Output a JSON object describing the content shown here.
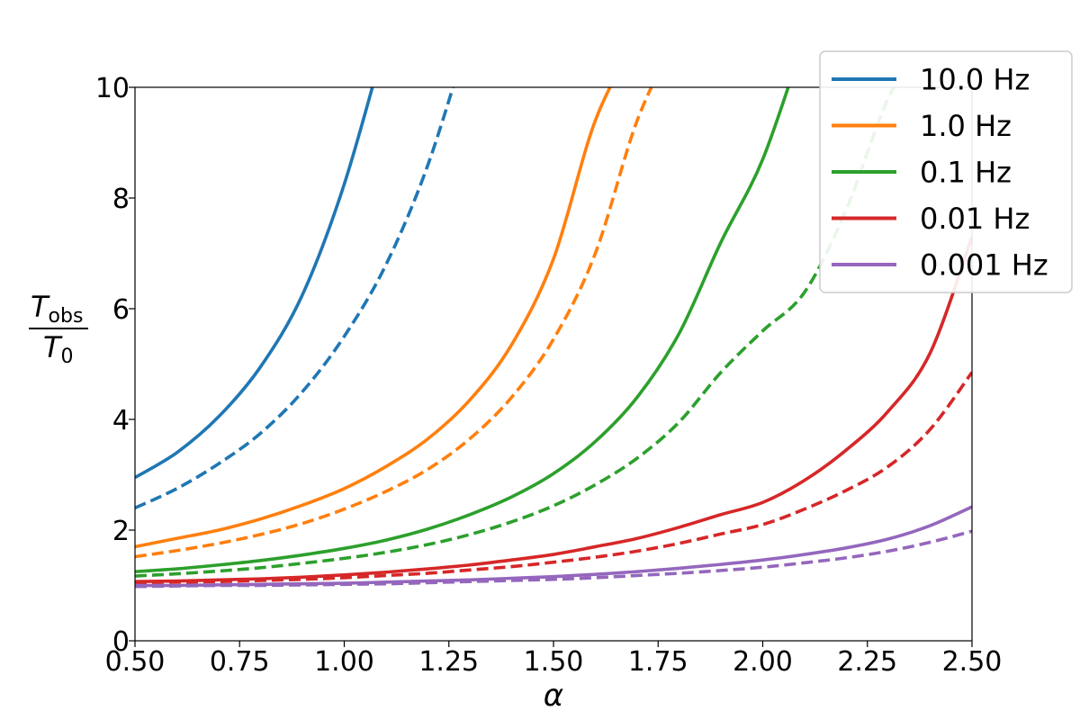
{
  "chart_data": {
    "type": "line",
    "xlabel": "α",
    "ylabel": {
      "numerator_base": "T",
      "numerator_sub": "obs",
      "denominator_base": "T",
      "denominator_sub": "0"
    },
    "xlim": [
      0.5,
      2.5
    ],
    "ylim": [
      0,
      10
    ],
    "xticks": [
      0.5,
      0.75,
      1.0,
      1.25,
      1.5,
      1.75,
      2.0,
      2.25,
      2.5
    ],
    "xtick_labels": [
      "0.50",
      "0.75",
      "1.00",
      "1.25",
      "1.50",
      "1.75",
      "2.00",
      "2.25",
      "2.50"
    ],
    "yticks": [
      0,
      2,
      4,
      6,
      8,
      10
    ],
    "ytick_labels": [
      "0",
      "2",
      "4",
      "6",
      "8",
      "10"
    ],
    "grid": false,
    "legend_position": "top-right",
    "x": [
      0.5,
      0.6,
      0.7,
      0.8,
      0.9,
      1.0,
      1.1,
      1.2,
      1.3,
      1.4,
      1.5,
      1.6,
      1.7,
      1.8,
      1.9,
      2.0,
      2.1,
      2.2,
      2.3,
      2.4,
      2.5
    ],
    "series": [
      {
        "name": "10.0 Hz",
        "color": "#1f77b4",
        "style": "solid",
        "values": [
          2.95,
          3.4,
          4.05,
          4.95,
          6.25,
          8.25,
          10.9,
          null,
          null,
          null,
          null,
          null,
          null,
          null,
          null,
          null,
          null,
          null,
          null,
          null,
          null
        ]
      },
      {
        "name": "",
        "color": "#1f77b4",
        "style": "dashed",
        "values": [
          2.4,
          2.75,
          3.2,
          3.75,
          4.5,
          5.5,
          6.8,
          8.6,
          11.0,
          null,
          null,
          null,
          null,
          null,
          null,
          null,
          null,
          null,
          null,
          null,
          null
        ]
      },
      {
        "name": "1.0 Hz",
        "color": "#ff7f0e",
        "style": "solid",
        "values": [
          1.7,
          1.85,
          2.0,
          2.2,
          2.45,
          2.75,
          3.15,
          3.65,
          4.35,
          5.35,
          6.9,
          9.4,
          10.9,
          null,
          null,
          null,
          null,
          null,
          null,
          null,
          null
        ]
      },
      {
        "name": "",
        "color": "#ff7f0e",
        "style": "dashed",
        "values": [
          1.52,
          1.63,
          1.76,
          1.92,
          2.12,
          2.38,
          2.7,
          3.1,
          3.65,
          4.4,
          5.45,
          7.0,
          9.4,
          11.0,
          null,
          null,
          null,
          null,
          null,
          null,
          null
        ]
      },
      {
        "name": "0.1 Hz",
        "color": "#2ca02c",
        "style": "solid",
        "values": [
          1.25,
          1.3,
          1.37,
          1.45,
          1.55,
          1.67,
          1.82,
          2.02,
          2.28,
          2.6,
          3.02,
          3.6,
          4.4,
          5.55,
          7.2,
          8.7,
          10.9,
          null,
          null,
          null,
          null
        ]
      },
      {
        "name": "",
        "color": "#2ca02c",
        "style": "dashed",
        "values": [
          1.17,
          1.21,
          1.26,
          1.32,
          1.4,
          1.49,
          1.6,
          1.74,
          1.92,
          2.15,
          2.44,
          2.82,
          3.3,
          3.95,
          4.85,
          5.6,
          6.3,
          7.8,
          9.8,
          11.0,
          null
        ]
      },
      {
        "name": "0.01 Hz",
        "color": "#d62728",
        "style": "solid",
        "values": [
          1.07,
          1.08,
          1.1,
          1.12,
          1.15,
          1.19,
          1.24,
          1.3,
          1.37,
          1.46,
          1.56,
          1.7,
          1.85,
          2.05,
          2.28,
          2.5,
          2.9,
          3.45,
          4.15,
          5.2,
          7.3
        ]
      },
      {
        "name": "",
        "color": "#d62728",
        "style": "dashed",
        "values": [
          1.05,
          1.06,
          1.07,
          1.09,
          1.11,
          1.14,
          1.18,
          1.22,
          1.28,
          1.34,
          1.42,
          1.51,
          1.62,
          1.76,
          1.93,
          2.1,
          2.38,
          2.72,
          3.15,
          3.82,
          4.85
        ]
      },
      {
        "name": "0.001 Hz",
        "color": "#9467bd",
        "style": "solid",
        "values": [
          1.0,
          1.0,
          1.01,
          1.02,
          1.03,
          1.04,
          1.06,
          1.08,
          1.1,
          1.13,
          1.16,
          1.2,
          1.25,
          1.31,
          1.38,
          1.46,
          1.56,
          1.68,
          1.84,
          2.08,
          2.42
        ]
      },
      {
        "name": "",
        "color": "#9467bd",
        "style": "dashed",
        "values": [
          0.98,
          0.99,
          1.0,
          1.0,
          1.01,
          1.02,
          1.03,
          1.05,
          1.07,
          1.09,
          1.11,
          1.14,
          1.18,
          1.22,
          1.27,
          1.33,
          1.41,
          1.5,
          1.62,
          1.78,
          1.98
        ]
      }
    ]
  }
}
